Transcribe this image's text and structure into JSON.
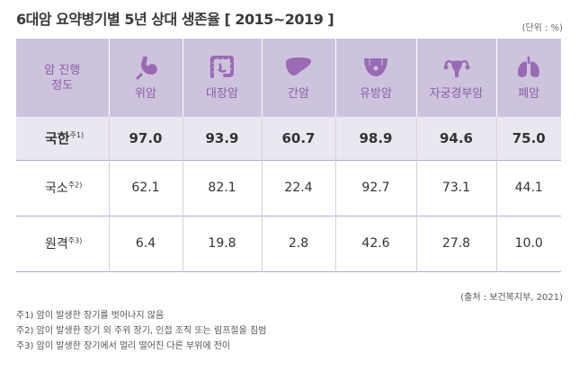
{
  "title": "6대암 요약병기별 5년 상대 생존율 [ 2015~2019 ]",
  "unit": "(단위 : %)",
  "header": {
    "stage": "암 진행 정도",
    "cancers": [
      {
        "label": "위암",
        "icon": "stomach-icon"
      },
      {
        "label": "대장암",
        "icon": "colon-icon"
      },
      {
        "label": "간암",
        "icon": "liver-icon"
      },
      {
        "label": "유방암",
        "icon": "breast-icon"
      },
      {
        "label": "자궁경부암",
        "icon": "uterus-icon"
      },
      {
        "label": "폐암",
        "icon": "lung-icon"
      }
    ]
  },
  "rows": [
    {
      "stage": "국한",
      "note": "주1)",
      "values": [
        "97.0",
        "93.9",
        "60.7",
        "98.9",
        "94.6",
        "75.0"
      ]
    },
    {
      "stage": "국소",
      "note": "주2)",
      "values": [
        "62.1",
        "82.1",
        "22.4",
        "92.7",
        "73.1",
        "44.1"
      ]
    },
    {
      "stage": "원격",
      "note": "주3)",
      "values": [
        "6.4",
        "19.8",
        "2.8",
        "42.6",
        "27.8",
        "10.0"
      ]
    }
  ],
  "source": "(출처 : 보건복지부, 2021)",
  "notes": [
    "주1) 암이 발생한 장기를 벗어나지 않음",
    "주2) 암이 발생한 장기 외 주위 장기, 인접 조직 또는 림프절을 침범",
    "주3) 암이 발생한 장기에서 멀리 떨어진 다른 부위에 전이"
  ],
  "colors": {
    "header_bg": "#cdc3dd",
    "accent": "#8b5ea8",
    "highlight_row": "#ebe7f1"
  }
}
